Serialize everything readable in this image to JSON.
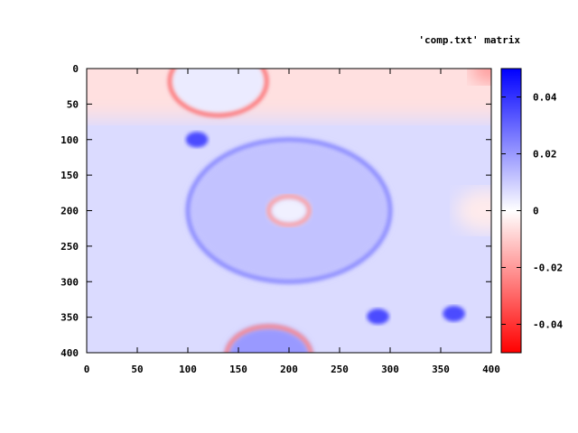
{
  "chart_data": {
    "type": "heatmap",
    "title": "",
    "legend": {
      "entries": [
        "'comp.txt' matrix"
      ],
      "placement": "top-right"
    },
    "xlabel": "",
    "ylabel": "",
    "xlim": [
      0,
      400
    ],
    "ylim": [
      400,
      0
    ],
    "y_axis_inverted": true,
    "xticks": [
      0,
      50,
      100,
      150,
      200,
      250,
      300,
      350,
      400
    ],
    "yticks": [
      0,
      50,
      100,
      150,
      200,
      250,
      300,
      350,
      400
    ],
    "grid": false,
    "colorbar": {
      "range": [
        -0.05,
        0.05
      ],
      "ticks": [
        -0.04,
        -0.02,
        0,
        0.02,
        0.04
      ],
      "tick_labels": [
        "-0.04",
        "-0.02",
        "0",
        "0.02",
        "0.04"
      ],
      "colors": {
        "min": "#ff0000",
        "zero": "#ffffff",
        "max": "#0000ff"
      }
    },
    "background": [
      {
        "region": "top band y 0-70",
        "value": -0.006
      },
      {
        "region": "rest",
        "value": 0.007
      }
    ],
    "features": [
      {
        "kind": "disc-ring",
        "cx": 130,
        "cy": 18,
        "r": 48,
        "inner_value": 0.004,
        "rim_value": -0.03
      },
      {
        "kind": "disc-ring",
        "cx": 200,
        "cy": 200,
        "r": 100,
        "inner_value": 0.012,
        "rim_value": 0.025
      },
      {
        "kind": "disc-ring",
        "cx": 200,
        "cy": 200,
        "r": 20,
        "inner_value": 0.003,
        "rim_value": -0.02
      },
      {
        "kind": "blob",
        "cx": 109,
        "cy": 100,
        "r": 11,
        "value": 0.035
      },
      {
        "kind": "blob",
        "cx": 288,
        "cy": 349,
        "r": 11,
        "value": 0.035
      },
      {
        "kind": "blob",
        "cx": 363,
        "cy": 345,
        "r": 11,
        "value": 0.035
      },
      {
        "kind": "disc-ring",
        "cx": 180,
        "cy": 405,
        "r": 42,
        "inner_value": 0.02,
        "rim_value": -0.025
      },
      {
        "kind": "blob",
        "cx": 400,
        "cy": 0,
        "r": 20,
        "value": -0.02
      },
      {
        "kind": "blob",
        "cx": 395,
        "cy": 200,
        "r": 30,
        "value": -0.004
      }
    ]
  }
}
